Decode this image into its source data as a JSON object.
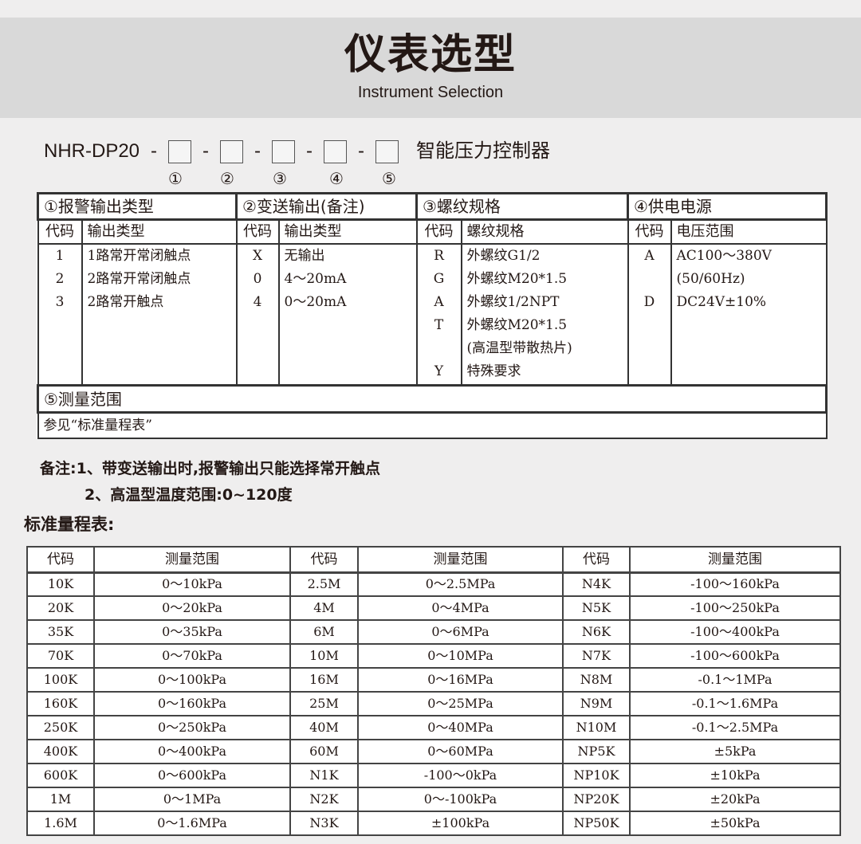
{
  "header": {
    "title": "仪表选型",
    "subtitle": "Instrument Selection"
  },
  "model": {
    "prefix": "NHR-DP20",
    "separator": "-",
    "suffix": "智能压力控制器",
    "positions": [
      "①",
      "②",
      "③",
      "④",
      "⑤"
    ]
  },
  "selection": {
    "sections": [
      {
        "title": "①报警输出类型",
        "code_header": "代码",
        "value_header": "输出类型",
        "codes": [
          "1",
          "2",
          "3"
        ],
        "values": [
          "1路常开常闭触点",
          "2路常开常闭触点",
          "2路常开触点"
        ]
      },
      {
        "title": "②变送输出(备注)",
        "code_header": "代码",
        "value_header": "输出类型",
        "codes": [
          "X",
          "0",
          "4"
        ],
        "values": [
          "无输出",
          "4～20mA",
          "0～20mA"
        ]
      },
      {
        "title": "③螺纹规格",
        "code_header": "代码",
        "value_header": "螺纹规格",
        "codes": [
          "R",
          "G",
          "A",
          "T",
          "",
          "Y"
        ],
        "values": [
          "外螺纹G1/2",
          "外螺纹M20*1.5",
          "外螺纹1/2NPT",
          "外螺纹M20*1.5",
          "(高温型带散热片)",
          "特殊要求"
        ]
      },
      {
        "title": "④供电电源",
        "code_header": "代码",
        "value_header": "电压范围",
        "codes": [
          "A",
          "",
          "D"
        ],
        "values": [
          "AC100～380V",
          "(50/60Hz)",
          "DC24V±10%"
        ]
      }
    ],
    "range_title": "⑤测量范围",
    "range_text": "参见“标准量程表”"
  },
  "notes": [
    "备注:1、带变送输出时,报警输出只能选择常开触点",
    "2、高温型温度范围:0~120度"
  ],
  "range_table": {
    "title": "标准量程表:",
    "headers": [
      "代码",
      "测量范围",
      "代码",
      "测量范围",
      "代码",
      "测量范围"
    ],
    "rows": [
      [
        "10K",
        "0～10kPa",
        "2.5M",
        "0～2.5MPa",
        "N4K",
        "-100～160kPa"
      ],
      [
        "20K",
        "0～20kPa",
        "4M",
        "0～4MPa",
        "N5K",
        "-100～250kPa"
      ],
      [
        "35K",
        "0～35kPa",
        "6M",
        "0～6MPa",
        "N6K",
        "-100～400kPa"
      ],
      [
        "70K",
        "0～70kPa",
        "10M",
        "0～10MPa",
        "N7K",
        "-100～600kPa"
      ],
      [
        "100K",
        "0～100kPa",
        "16M",
        "0～16MPa",
        "N8M",
        "-0.1～1MPa"
      ],
      [
        "160K",
        "0～160kPa",
        "25M",
        "0～25MPa",
        "N9M",
        "-0.1～1.6MPa"
      ],
      [
        "250K",
        "0～250kPa",
        "40M",
        "0～40MPa",
        "N10M",
        "-0.1～2.5MPa"
      ],
      [
        "400K",
        "0～400kPa",
        "60M",
        "0～60MPa",
        "NP5K",
        "±5kPa"
      ],
      [
        "600K",
        "0～600kPa",
        "N1K",
        "-100～0kPa",
        "NP10K",
        "±10kPa"
      ],
      [
        "1M",
        "0～1MPa",
        "N2K",
        "0～-100kPa",
        "NP20K",
        "±20kPa"
      ],
      [
        "1.6M",
        "0～1.6MPa",
        "N3K",
        "±100kPa",
        "NP50K",
        "±50kPa"
      ]
    ]
  }
}
